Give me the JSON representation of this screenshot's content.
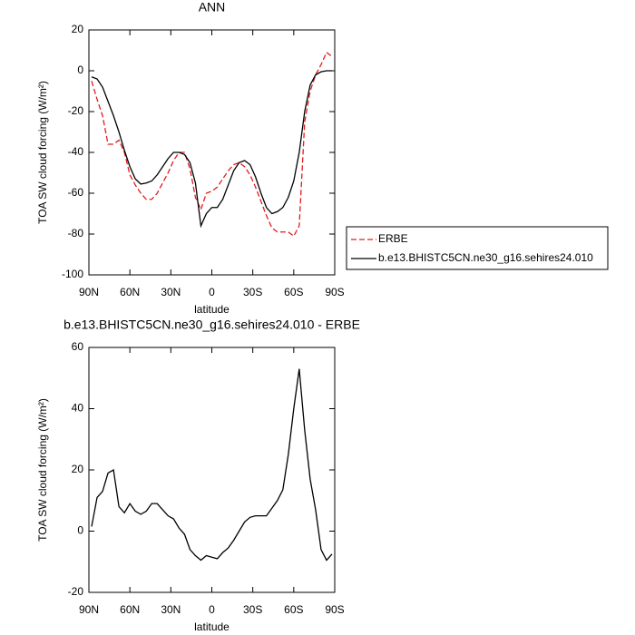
{
  "chart_data": [
    {
      "type": "line",
      "title": "ANN",
      "xlabel": "latitude",
      "ylabel": "TOA SW cloud forcing (W/m²)",
      "x": [
        88,
        84,
        80,
        76,
        72,
        68,
        64,
        60,
        56,
        52,
        48,
        44,
        40,
        36,
        32,
        28,
        24,
        20,
        16,
        12,
        8,
        4,
        0,
        -4,
        -8,
        -12,
        -16,
        -20,
        -24,
        -28,
        -32,
        -36,
        -40,
        -44,
        -48,
        -52,
        -56,
        -60,
        -64,
        -68,
        -72,
        -76,
        -80,
        -84,
        -88
      ],
      "series": [
        {
          "name": "ERBE",
          "color": "#e41a1c",
          "dashed": true,
          "values": [
            -5,
            -14,
            -22,
            -36,
            -36,
            -34,
            -40,
            -51,
            -56,
            -60,
            -63,
            -63,
            -60,
            -55,
            -50,
            -44,
            -40,
            -40,
            -48,
            -62,
            -68,
            -60,
            -59,
            -57,
            -53,
            -49,
            -46,
            -45,
            -47,
            -51,
            -57,
            -64,
            -71,
            -77,
            -79,
            -79,
            -79,
            -81,
            -76,
            -25,
            -10,
            -2,
            3,
            9,
            7
          ]
        },
        {
          "name": "b.e13.BHISTC5CN.ne30_g16.sehires24.010",
          "color": "#000000",
          "dashed": false,
          "values": [
            -3,
            -4,
            -8,
            -15,
            -22,
            -30,
            -39,
            -47,
            -53,
            -55.5,
            -55,
            -54,
            -51,
            -47,
            -43,
            -40,
            -40,
            -41,
            -45,
            -55,
            -76,
            -70,
            -67,
            -67,
            -63,
            -56,
            -49,
            -45,
            -44,
            -46,
            -52,
            -60,
            -67,
            -70,
            -69,
            -67,
            -62,
            -54,
            -40,
            -20,
            -7,
            -2,
            -0.5,
            0,
            0
          ]
        }
      ],
      "xlim": [
        90,
        -90
      ],
      "xticks": [
        {
          "value": 90,
          "label": "90N"
        },
        {
          "value": 60,
          "label": "60N"
        },
        {
          "value": 30,
          "label": "30N"
        },
        0,
        {
          "value": -30,
          "label": "30S"
        },
        {
          "value": -60,
          "label": "60S"
        },
        {
          "value": -90,
          "label": "90S"
        }
      ],
      "ylim": [
        -100,
        20
      ],
      "yticks": [
        -100,
        -80,
        -60,
        -40,
        -20,
        0,
        20
      ],
      "legend": "right"
    },
    {
      "type": "line",
      "title": "b.e13.BHISTC5CN.ne30_g16.sehires24.010 - ERBE",
      "xlabel": "latitude",
      "ylabel": "TOA SW cloud forcing (W/m²)",
      "x": [
        88,
        84,
        80,
        76,
        72,
        68,
        64,
        60,
        56,
        52,
        48,
        44,
        40,
        36,
        32,
        28,
        24,
        20,
        16,
        12,
        8,
        4,
        0,
        -4,
        -8,
        -12,
        -16,
        -20,
        -24,
        -28,
        -32,
        -36,
        -40,
        -44,
        -48,
        -52,
        -56,
        -60,
        -64,
        -68,
        -72,
        -76,
        -80,
        -84,
        -88
      ],
      "series": [
        {
          "color": "#000000",
          "dashed": false,
          "values": [
            1.5,
            11,
            13,
            19,
            20,
            8,
            6,
            9,
            6.5,
            5.5,
            6.5,
            9,
            9,
            7,
            5,
            4,
            1,
            -1,
            -6,
            -8,
            -9.5,
            -8,
            -8.5,
            -9,
            -7,
            -5.5,
            -3,
            0,
            3,
            4.5,
            5,
            5,
            5,
            7.5,
            10,
            13.5,
            25,
            40,
            53,
            33,
            17,
            7,
            -6,
            -9.5,
            -7.5
          ]
        }
      ],
      "xlim": [
        90,
        -90
      ],
      "xticks": [
        {
          "value": 90,
          "label": "90N"
        },
        {
          "value": 60,
          "label": "60N"
        },
        {
          "value": 30,
          "label": "30N"
        },
        0,
        {
          "value": -30,
          "label": "30S"
        },
        {
          "value": -60,
          "label": "60S"
        },
        {
          "value": -90,
          "label": "90S"
        }
      ],
      "ylim": [
        -20,
        60
      ],
      "yticks": [
        -20,
        0,
        20,
        40,
        60
      ]
    }
  ]
}
